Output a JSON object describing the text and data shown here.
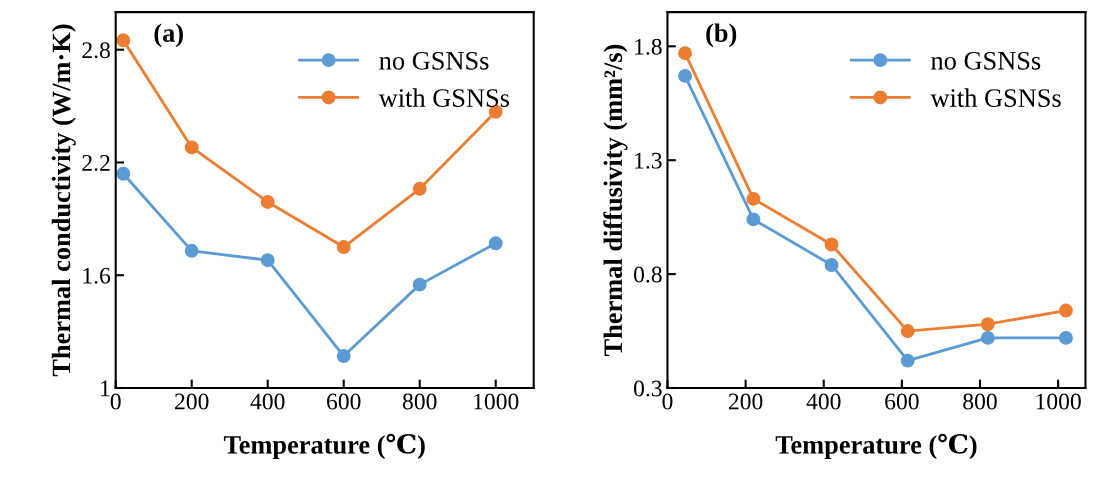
{
  "chart_data": [
    {
      "type": "line",
      "annotations": [
        "(a)"
      ],
      "xlabel": "Temperature (℃)",
      "ylabel": "Thermal conductivity (W/m·K)",
      "xlim": [
        0,
        1100
      ],
      "xticks": [
        0,
        200,
        400,
        600,
        800,
        1000
      ],
      "ylim": [
        1,
        3.0
      ],
      "yticks": [
        1,
        1.6,
        2.2,
        2.8
      ],
      "legend": "top right",
      "grid": false,
      "marker": "circle",
      "line_style": "solid",
      "series": [
        {
          "name": "no GSNSs",
          "color": "#5b9bd5",
          "x": [
            20,
            200,
            400,
            600,
            800,
            1000
          ],
          "values": [
            2.14,
            1.73,
            1.68,
            1.17,
            1.55,
            1.77
          ]
        },
        {
          "name": "with GSNSs",
          "color": "#ed7d31",
          "x": [
            20,
            200,
            400,
            600,
            800,
            1000
          ],
          "values": [
            2.85,
            2.28,
            1.99,
            1.75,
            2.06,
            2.47
          ]
        }
      ]
    },
    {
      "type": "line",
      "annotations": [
        "(b)"
      ],
      "xlabel": "Temperature (℃)",
      "ylabel": "Thermal diffusivity (mm²/s)",
      "xlim": [
        0,
        1070
      ],
      "xticks": [
        0,
        200,
        400,
        600,
        800,
        1000
      ],
      "ylim": [
        0.3,
        1.95
      ],
      "yticks": [
        0.3,
        0.8,
        1.3,
        1.8
      ],
      "legend": "top right",
      "grid": false,
      "marker": "circle",
      "line_style": "solid",
      "series": [
        {
          "name": "no GSNSs",
          "color": "#5b9bd5",
          "x": [
            45,
            220,
            420,
            615,
            820,
            1020
          ],
          "values": [
            1.67,
            1.04,
            0.84,
            0.42,
            0.52,
            0.52
          ]
        },
        {
          "name": "with GSNSs",
          "color": "#ed7d31",
          "x": [
            45,
            220,
            420,
            615,
            820,
            1020
          ],
          "values": [
            1.77,
            1.13,
            0.93,
            0.55,
            0.58,
            0.64
          ]
        }
      ]
    }
  ]
}
